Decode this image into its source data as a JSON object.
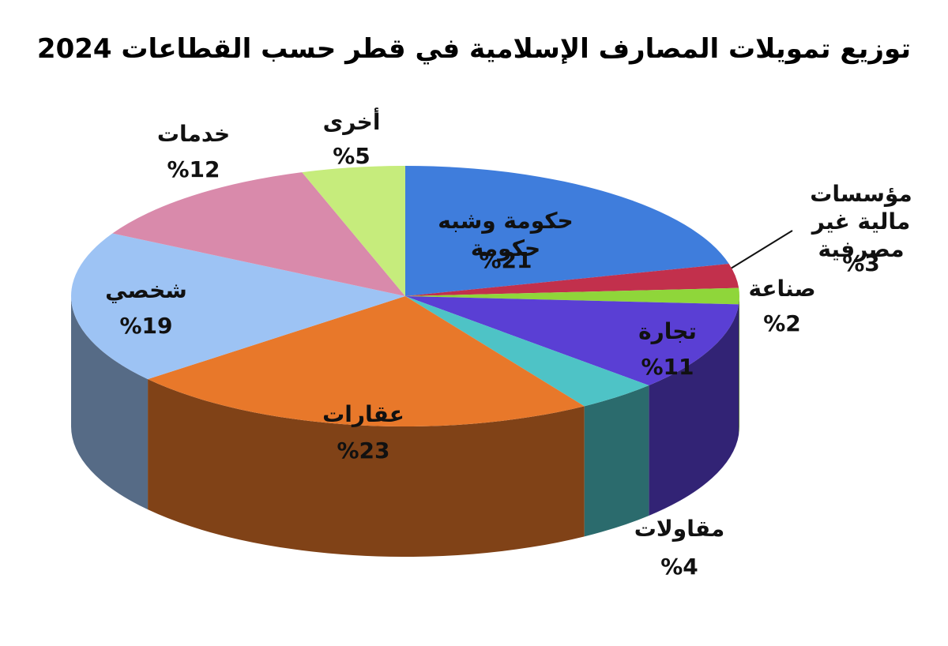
{
  "chart_data": {
    "type": "pie3d",
    "title": "توزيع تمويلات المصارف الإسلامية في قطر حسب القطاعات 2024",
    "categories": [
      "حكومة وشبه حكومة",
      "مؤسسات مالية غير مصرفية",
      "صناعة",
      "تجارة",
      "مقاولات",
      "عقارات",
      "شخصي",
      "خدمات",
      "أخرى"
    ],
    "values": [
      21,
      3,
      2,
      11,
      4,
      23,
      19,
      12,
      5
    ],
    "value_labels": [
      "%21",
      "%3",
      "%2",
      "%11",
      "%4",
      "%23",
      "%19",
      "%12",
      "%5"
    ],
    "colors": [
      "#3f7ddc",
      "#c2304c",
      "#8fd63a",
      "#5a3fd4",
      "#4ec3c6",
      "#e8782a",
      "#9dc3f4",
      "#d98aab",
      "#c6ec7c"
    ]
  }
}
